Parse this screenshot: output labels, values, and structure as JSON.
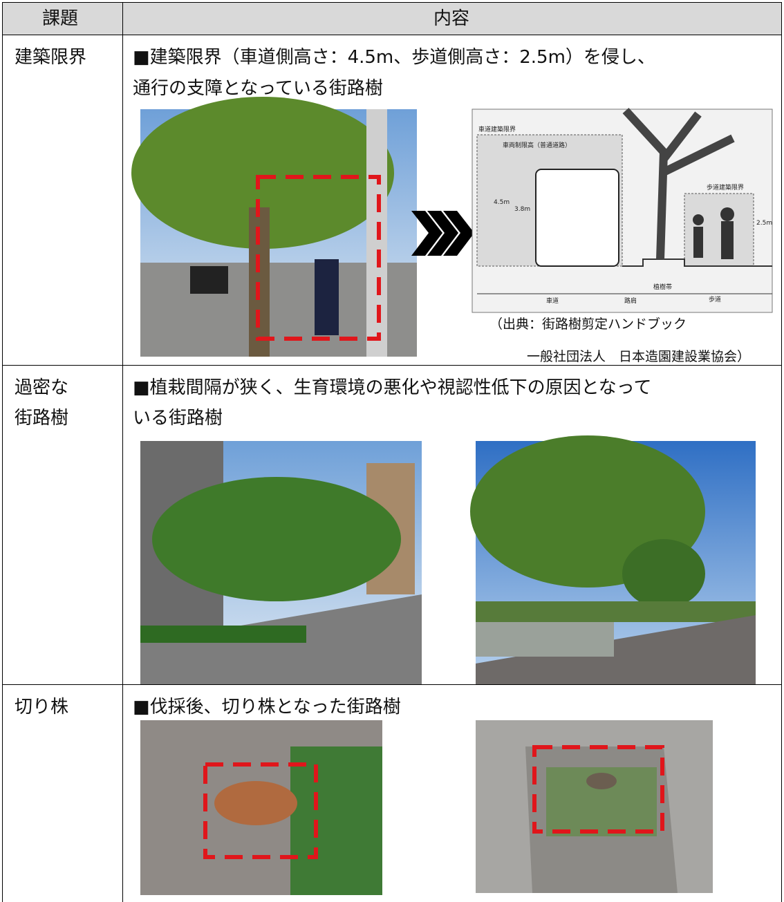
{
  "header": {
    "col1": "課題",
    "col2": "内容"
  },
  "rows": [
    {
      "issue": [
        "建築限界"
      ],
      "description": [
        "■建築限界（車道側高さ：4.5m、歩道側高さ：2.5m）を侵し、",
        "通行の支障となっている街路樹"
      ],
      "diagram_labels": [
        "車道建築限界",
        "車両制限高（普通道路）",
        "歩道建築限界",
        "4.5m",
        "3.8m",
        "2.5m",
        "植樹帯",
        "車道",
        "路肩",
        "歩道"
      ],
      "caption": [
        "（出典：街路樹剪定ハンドブック",
        "一般社団法人　日本造園建設業協会）"
      ]
    },
    {
      "issue": [
        "過密な",
        "街路樹"
      ],
      "description": [
        "■植栽間隔が狭く、生育環境の悪化や視認性低下の原因となって",
        "いる街路樹"
      ]
    },
    {
      "issue": [
        "切り株"
      ],
      "description": [
        "■伐採後、切り株となった街路樹"
      ]
    }
  ]
}
